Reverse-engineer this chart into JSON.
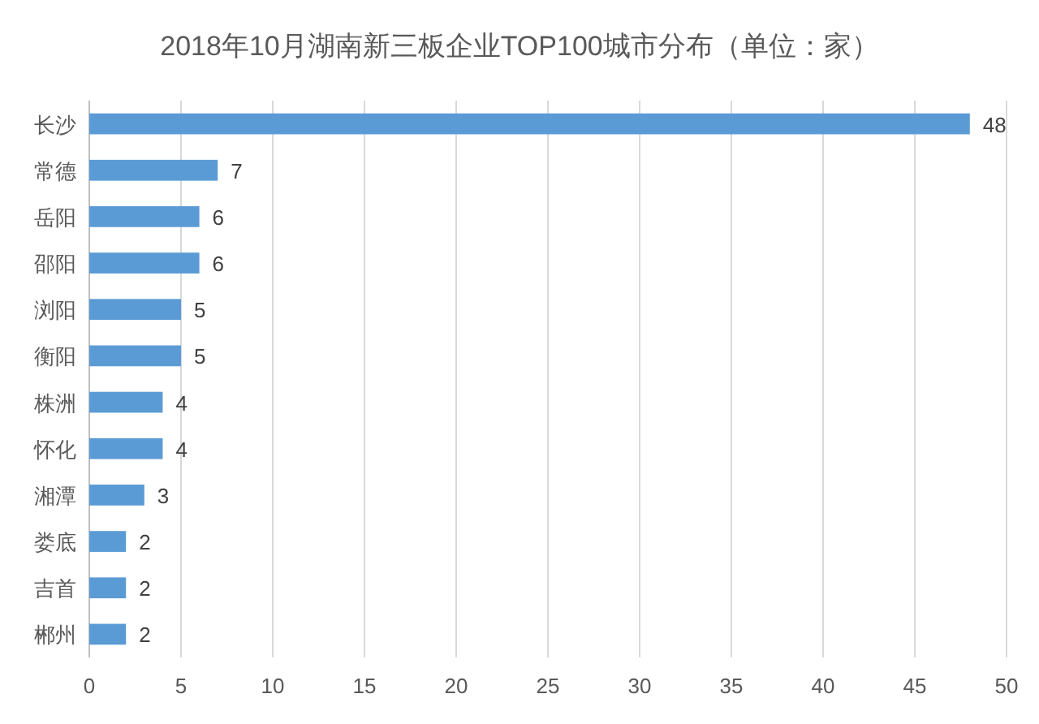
{
  "chart_data": {
    "type": "bar",
    "orientation": "horizontal",
    "title": "2018年10月湖南新三板企业TOP100城市分布（单位：家）",
    "categories": [
      "长沙",
      "常德",
      "岳阳",
      "邵阳",
      "浏阳",
      "衡阳",
      "株洲",
      "怀化",
      "湘潭",
      "娄底",
      "吉首",
      "郴州"
    ],
    "values": [
      48,
      7,
      6,
      6,
      5,
      5,
      4,
      4,
      3,
      2,
      2,
      2
    ],
    "color": "#5b9bd5",
    "xlim": [
      0,
      50
    ],
    "xticks": [
      0,
      5,
      10,
      15,
      20,
      25,
      30,
      35,
      40,
      45,
      50
    ],
    "grid": "x",
    "data_labels": true
  }
}
